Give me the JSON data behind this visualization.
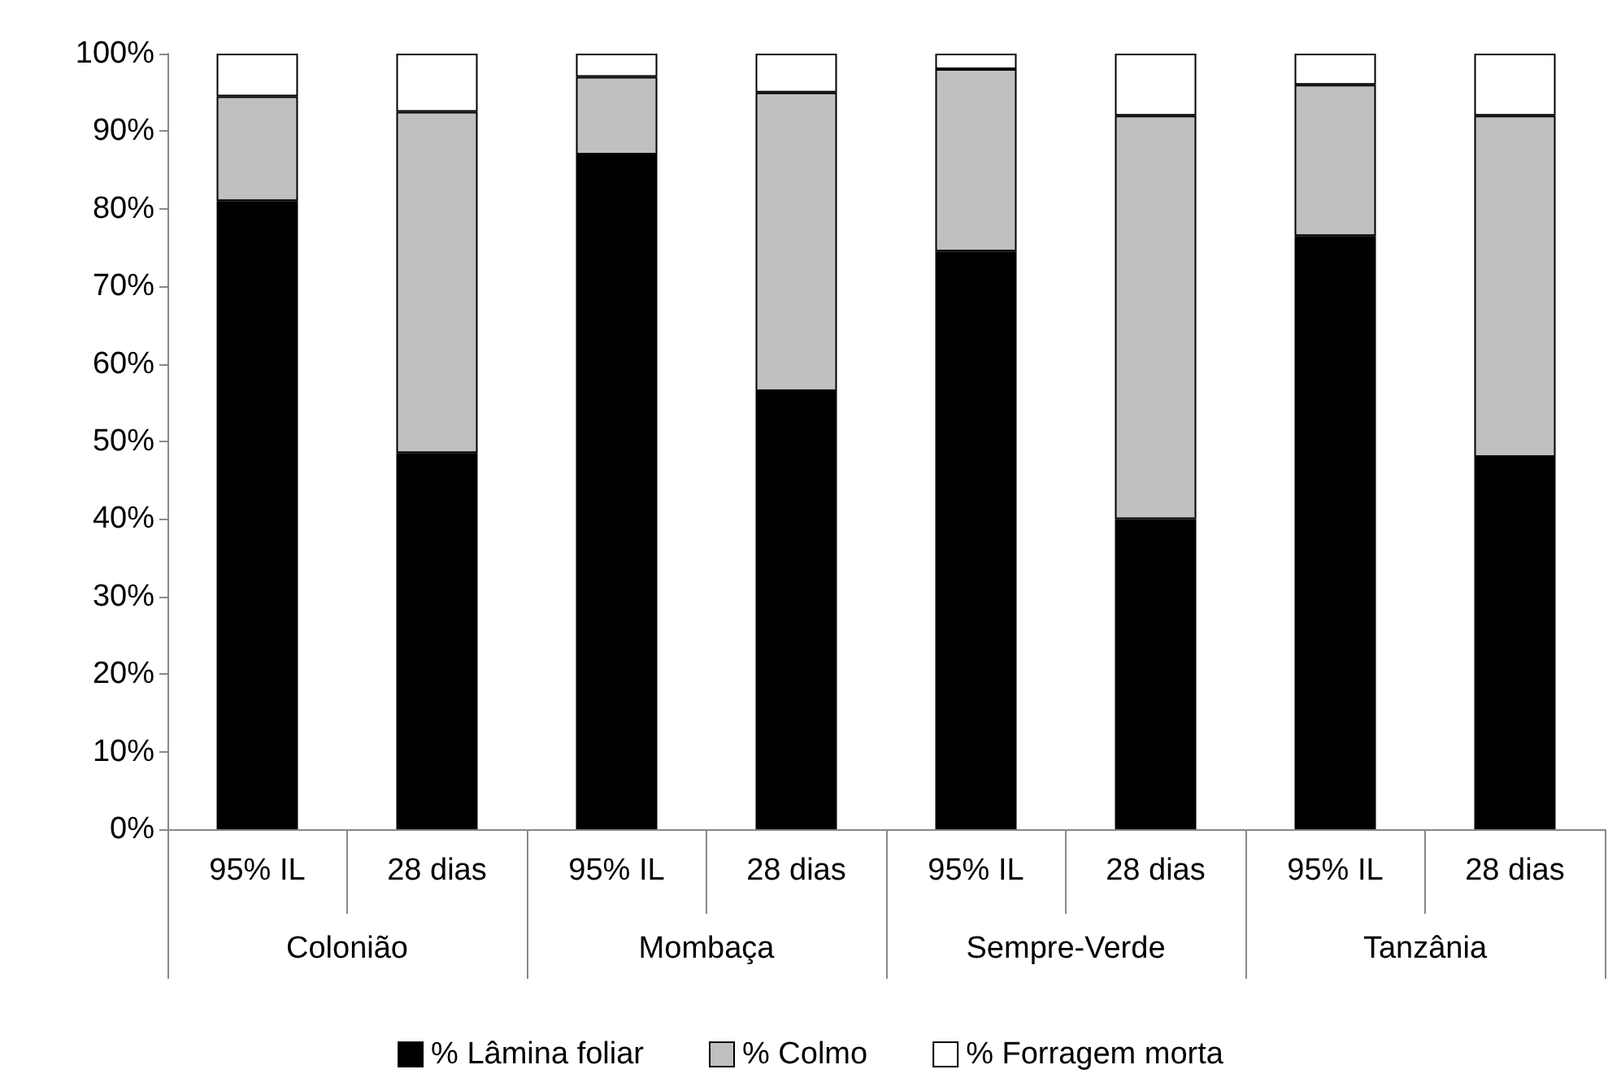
{
  "chart_data": {
    "type": "bar",
    "stacked": true,
    "categories": [
      "95% IL",
      "28 dias",
      "95% IL",
      "28 dias",
      "95% IL",
      "28 dias",
      "95% IL",
      "28 dias"
    ],
    "annotations": [
      "Colonião",
      "Mombaça",
      "Sempre-Verde",
      "Tanzânia"
    ],
    "series": [
      {
        "name": "% Lâmina foliar",
        "color": "#000000",
        "values": [
          81,
          48.5,
          87,
          56.5,
          74.5,
          40,
          76.5,
          48
        ]
      },
      {
        "name": "% Colmo",
        "color": "#c0c0c0",
        "values": [
          13.5,
          44,
          10,
          38.5,
          23.5,
          52,
          19.5,
          44
        ]
      },
      {
        "name": "% Forragem morta",
        "color": "#ffffff",
        "values": [
          5.5,
          7.5,
          3,
          5,
          2,
          8,
          4,
          8
        ]
      }
    ],
    "ylim": [
      0,
      100
    ],
    "yticks": [
      {
        "value": 0,
        "label": "0%"
      },
      {
        "value": 10,
        "label": "10%"
      },
      {
        "value": 20,
        "label": "20%"
      },
      {
        "value": 30,
        "label": "30%"
      },
      {
        "value": 40,
        "label": "40%"
      },
      {
        "value": 50,
        "label": "50%"
      },
      {
        "value": 60,
        "label": "60%"
      },
      {
        "value": 70,
        "label": "70%"
      },
      {
        "value": 80,
        "label": "80%"
      },
      {
        "value": 90,
        "label": "90%"
      },
      {
        "value": 100,
        "label": "100%"
      }
    ],
    "grid": false,
    "legend": "bottom"
  }
}
